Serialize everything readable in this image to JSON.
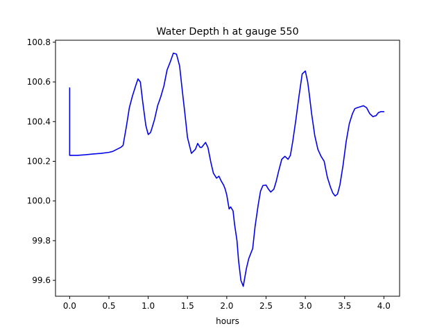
{
  "chart_data": {
    "type": "line",
    "title": "Water Depth h at gauge 550",
    "xlabel": "hours",
    "ylabel": "",
    "xlim": [
      -0.18,
      4.2
    ],
    "ylim": [
      99.52,
      100.81
    ],
    "xticks": [
      0.0,
      0.5,
      1.0,
      1.5,
      2.0,
      2.5,
      3.0,
      3.5,
      4.0
    ],
    "xtick_labels": [
      "0.0",
      "0.5",
      "1.0",
      "1.5",
      "2.0",
      "2.5",
      "3.0",
      "3.5",
      "4.0"
    ],
    "yticks": [
      99.6,
      99.8,
      100.0,
      100.2,
      100.4,
      100.6,
      100.8
    ],
    "ytick_labels": [
      "99.6",
      "99.8",
      "100.0",
      "100.2",
      "100.4",
      "100.6",
      "100.8"
    ],
    "grid": false,
    "series": [
      {
        "color": "#0000ee",
        "x": [
          0.0,
          0.0,
          0.1,
          0.2,
          0.3,
          0.4,
          0.5,
          0.55,
          0.6,
          0.65,
          0.68,
          0.72,
          0.76,
          0.8,
          0.84,
          0.87,
          0.9,
          0.93,
          0.97,
          1.0,
          1.03,
          1.05,
          1.08,
          1.12,
          1.16,
          1.2,
          1.24,
          1.28,
          1.32,
          1.36,
          1.4,
          1.43,
          1.47,
          1.5,
          1.55,
          1.6,
          1.63,
          1.66,
          1.68,
          1.7,
          1.73,
          1.76,
          1.78,
          1.8,
          1.83,
          1.87,
          1.9,
          1.93,
          1.96,
          1.98,
          2.0,
          2.03,
          2.05,
          2.08,
          2.1,
          2.13,
          2.15,
          2.18,
          2.21,
          2.25,
          2.28,
          2.3,
          2.33,
          2.36,
          2.4,
          2.43,
          2.46,
          2.5,
          2.53,
          2.56,
          2.6,
          2.63,
          2.66,
          2.7,
          2.74,
          2.78,
          2.81,
          2.84,
          2.88,
          2.92,
          2.96,
          3.0,
          3.03,
          3.05,
          3.08,
          3.12,
          3.16,
          3.2,
          3.24,
          3.28,
          3.32,
          3.35,
          3.38,
          3.41,
          3.44,
          3.48,
          3.52,
          3.56,
          3.6,
          3.63,
          3.66,
          3.7,
          3.74,
          3.78,
          3.82,
          3.86,
          3.9,
          3.93,
          3.96,
          4.0
        ],
        "y": [
          100.57,
          100.23,
          100.23,
          100.233,
          100.237,
          100.24,
          100.245,
          100.25,
          100.26,
          100.27,
          100.28,
          100.37,
          100.47,
          100.53,
          100.58,
          100.615,
          100.6,
          100.5,
          100.38,
          100.335,
          100.345,
          100.37,
          100.41,
          100.48,
          100.525,
          100.58,
          100.66,
          100.7,
          100.745,
          100.74,
          100.68,
          100.57,
          100.43,
          100.32,
          100.24,
          100.26,
          100.29,
          100.27,
          100.27,
          100.28,
          100.295,
          100.27,
          100.23,
          100.19,
          100.14,
          100.115,
          100.125,
          100.1,
          100.08,
          100.06,
          100.03,
          99.96,
          99.97,
          99.95,
          99.88,
          99.8,
          99.7,
          99.6,
          99.57,
          99.66,
          99.71,
          99.73,
          99.76,
          99.87,
          99.98,
          100.05,
          100.078,
          100.08,
          100.06,
          100.045,
          100.06,
          100.1,
          100.15,
          100.21,
          100.225,
          100.21,
          100.23,
          100.3,
          100.41,
          100.53,
          100.64,
          100.655,
          100.6,
          100.54,
          100.44,
          100.33,
          100.26,
          100.225,
          100.2,
          100.12,
          100.07,
          100.04,
          100.025,
          100.035,
          100.08,
          100.18,
          100.3,
          100.39,
          100.44,
          100.465,
          100.47,
          100.475,
          100.48,
          100.47,
          100.44,
          100.425,
          100.43,
          100.445,
          100.45,
          100.45
        ]
      }
    ]
  }
}
